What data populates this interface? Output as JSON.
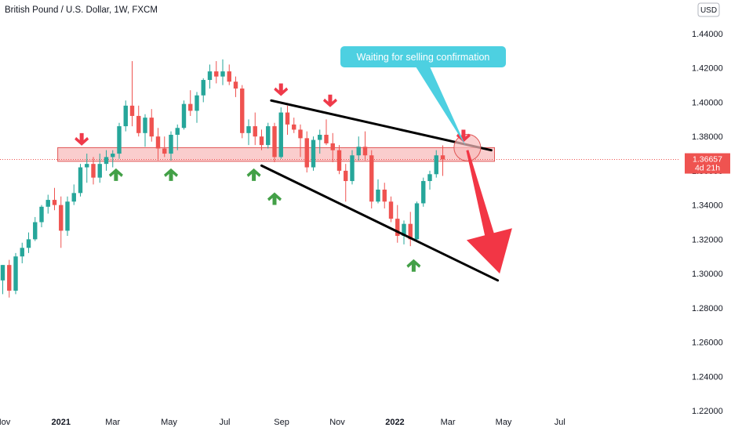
{
  "header": {
    "title": "British Pound / U.S. Dollar, 1W, FXCM",
    "currency": "USD"
  },
  "chart_data": {
    "type": "candlestick",
    "title": "British Pound / U.S. Dollar, 1W, FXCM",
    "ylim": [
      1.22,
      1.45
    ],
    "y_ticks": [
      "1.44000",
      "1.42000",
      "1.40000",
      "1.38000",
      "1.36000",
      "1.34000",
      "1.32000",
      "1.30000",
      "1.28000",
      "1.26000",
      "1.24000",
      "1.22000"
    ],
    "x_ticks": [
      {
        "label": "Nov",
        "week": 0,
        "bold": false
      },
      {
        "label": "2021",
        "week": 9,
        "bold": true
      },
      {
        "label": "Mar",
        "week": 17,
        "bold": false
      },
      {
        "label": "May",
        "week": 25.7,
        "bold": false
      },
      {
        "label": "Jul",
        "week": 34.3,
        "bold": false
      },
      {
        "label": "Sep",
        "week": 43.1,
        "bold": false
      },
      {
        "label": "Nov",
        "week": 51.7,
        "bold": false
      },
      {
        "label": "2022",
        "week": 60.6,
        "bold": true
      },
      {
        "label": "Mar",
        "week": 68.8,
        "bold": false
      },
      {
        "label": "May",
        "week": 77.4,
        "bold": false
      },
      {
        "label": "Jul",
        "week": 86.1,
        "bold": false
      }
    ],
    "last_price": "1.36657",
    "last_price_value": 1.36657,
    "countdown": "4d 21h",
    "candles": [
      [
        1.296,
        1.305,
        1.288,
        1.305
      ],
      [
        1.305,
        1.308,
        1.286,
        1.29
      ],
      [
        1.29,
        1.312,
        1.288,
        1.31
      ],
      [
        1.31,
        1.318,
        1.306,
        1.315
      ],
      [
        1.315,
        1.324,
        1.312,
        1.32
      ],
      [
        1.32,
        1.333,
        1.319,
        1.33
      ],
      [
        1.33,
        1.34,
        1.327,
        1.339
      ],
      [
        1.339,
        1.346,
        1.335,
        1.343
      ],
      [
        1.343,
        1.35,
        1.337,
        1.34
      ],
      [
        1.34,
        1.345,
        1.315,
        1.325
      ],
      [
        1.325,
        1.345,
        1.322,
        1.342
      ],
      [
        1.342,
        1.352,
        1.34,
        1.347
      ],
      [
        1.347,
        1.364,
        1.345,
        1.362
      ],
      [
        1.362,
        1.37,
        1.353,
        1.364
      ],
      [
        1.364,
        1.368,
        1.352,
        1.356
      ],
      [
        1.356,
        1.37,
        1.353,
        1.364
      ],
      [
        1.364,
        1.372,
        1.36,
        1.368
      ],
      [
        1.368,
        1.372,
        1.362,
        1.37
      ],
      [
        1.37,
        1.388,
        1.367,
        1.386
      ],
      [
        1.386,
        1.401,
        1.383,
        1.398
      ],
      [
        1.398,
        1.424,
        1.386,
        1.392
      ],
      [
        1.392,
        1.398,
        1.38,
        1.382
      ],
      [
        1.382,
        1.393,
        1.374,
        1.391
      ],
      [
        1.391,
        1.396,
        1.377,
        1.38
      ],
      [
        1.38,
        1.385,
        1.366,
        1.373
      ],
      [
        1.373,
        1.38,
        1.368,
        1.37
      ],
      [
        1.37,
        1.383,
        1.366,
        1.381
      ],
      [
        1.381,
        1.387,
        1.372,
        1.385
      ],
      [
        1.385,
        1.401,
        1.384,
        1.399
      ],
      [
        1.399,
        1.407,
        1.392,
        1.395
      ],
      [
        1.395,
        1.406,
        1.388,
        1.404
      ],
      [
        1.404,
        1.414,
        1.4,
        1.413
      ],
      [
        1.413,
        1.422,
        1.408,
        1.418
      ],
      [
        1.418,
        1.424,
        1.411,
        1.415
      ],
      [
        1.415,
        1.425,
        1.41,
        1.418
      ],
      [
        1.418,
        1.422,
        1.41,
        1.412
      ],
      [
        1.412,
        1.415,
        1.403,
        1.408
      ],
      [
        1.408,
        1.41,
        1.379,
        1.382
      ],
      [
        1.382,
        1.39,
        1.375,
        1.386
      ],
      [
        1.386,
        1.394,
        1.375,
        1.38
      ],
      [
        1.38,
        1.384,
        1.372,
        1.375
      ],
      [
        1.375,
        1.388,
        1.373,
        1.386
      ],
      [
        1.386,
        1.388,
        1.365,
        1.368
      ],
      [
        1.368,
        1.397,
        1.367,
        1.394
      ],
      [
        1.394,
        1.398,
        1.381,
        1.387
      ],
      [
        1.387,
        1.391,
        1.382,
        1.384
      ],
      [
        1.384,
        1.387,
        1.368,
        1.379
      ],
      [
        1.379,
        1.383,
        1.359,
        1.362
      ],
      [
        1.362,
        1.38,
        1.36,
        1.378
      ],
      [
        1.378,
        1.384,
        1.37,
        1.381
      ],
      [
        1.381,
        1.39,
        1.375,
        1.376
      ],
      [
        1.376,
        1.382,
        1.365,
        1.372
      ],
      [
        1.372,
        1.375,
        1.358,
        1.36
      ],
      [
        1.36,
        1.364,
        1.342,
        1.354
      ],
      [
        1.354,
        1.372,
        1.352,
        1.369
      ],
      [
        1.369,
        1.38,
        1.366,
        1.374
      ],
      [
        1.374,
        1.383,
        1.366,
        1.369
      ],
      [
        1.369,
        1.372,
        1.338,
        1.342
      ],
      [
        1.342,
        1.355,
        1.341,
        1.349
      ],
      [
        1.349,
        1.353,
        1.338,
        1.342
      ],
      [
        1.342,
        1.345,
        1.33,
        1.332
      ],
      [
        1.332,
        1.34,
        1.318,
        1.322
      ],
      [
        1.322,
        1.331,
        1.317,
        1.329
      ],
      [
        1.329,
        1.336,
        1.316,
        1.32
      ],
      [
        1.32,
        1.342,
        1.319,
        1.341
      ],
      [
        1.341,
        1.356,
        1.339,
        1.354
      ],
      [
        1.354,
        1.36,
        1.349,
        1.358
      ],
      [
        1.358,
        1.372,
        1.356,
        1.369
      ],
      [
        1.369,
        1.3748,
        1.357,
        1.36657
      ]
    ],
    "annotations": {
      "callout_text": "Waiting for selling confirmation",
      "support_zone": {
        "week_from": 8.5,
        "week_to": 76,
        "price_low": 1.3655,
        "price_high": 1.3735
      },
      "upper_trendline": {
        "from": [
          41.5,
          1.401
        ],
        "to": [
          75.5,
          1.372
        ]
      },
      "lower_trendline": {
        "from": [
          40.0,
          1.363
        ],
        "to": [
          76.5,
          1.296
        ]
      },
      "target_arrow": {
        "from": [
          71.8,
          1.372
        ],
        "to": [
          76.8,
          1.3
        ]
      },
      "down_markers": [
        [
          12.2,
          1.376
        ],
        [
          43.0,
          1.405
        ],
        [
          50.6,
          1.3985
        ],
        [
          71.2,
          1.378
        ]
      ],
      "up_markers": [
        [
          17.5,
          1.36
        ],
        [
          26.0,
          1.36
        ],
        [
          38.8,
          1.36
        ],
        [
          42.0,
          1.346
        ],
        [
          63.5,
          1.307
        ]
      ]
    },
    "colors": {
      "up": "#26a69a",
      "down": "#ef5350",
      "marker_down": "#ef3a4a",
      "marker_up": "#43a047",
      "zone": "#f8bcbc",
      "zone_border": "#e05656",
      "callout": "#4dd0e1",
      "arrow": "#f23645",
      "trendline": "#000000",
      "price_tag": "#ef5350"
    }
  }
}
